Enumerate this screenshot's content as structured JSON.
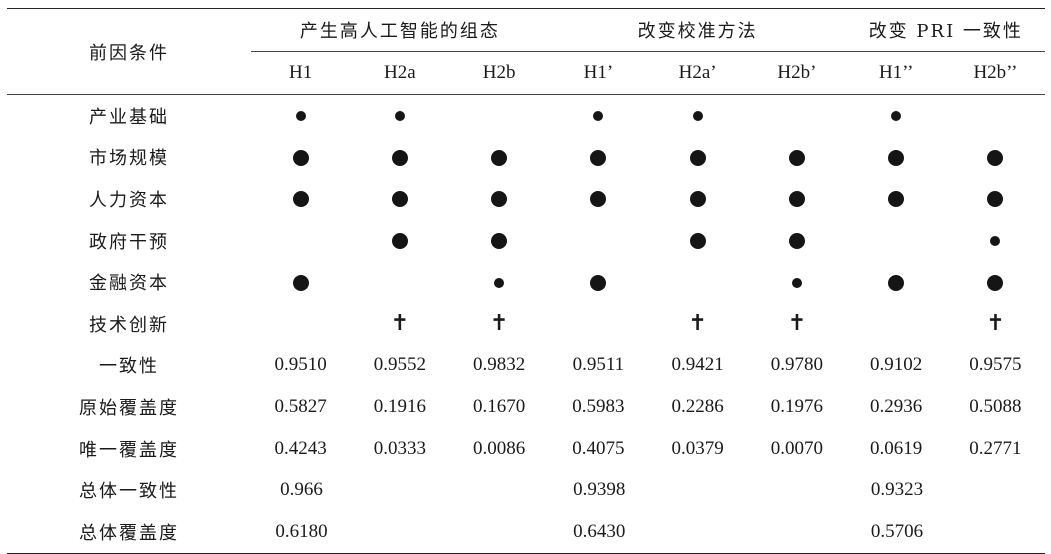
{
  "header": {
    "antecedent_label": "前因条件",
    "groups": [
      "产生高人工智能的组态",
      "改变校准方法",
      "改变 PRI 一致性"
    ],
    "configs": [
      "H1",
      "H2a",
      "H2b",
      "H1’",
      "H2a’",
      "H2b’",
      "H1’’",
      "H2b’’"
    ]
  },
  "legend_symbols": {
    "core_present": "●",
    "peripheral_present": "•",
    "absent": "✝"
  },
  "condition_rows": [
    {
      "label": "产业基础",
      "cells": [
        "small",
        "small",
        "",
        "small",
        "small",
        "",
        "small",
        ""
      ]
    },
    {
      "label": "市场规模",
      "cells": [
        "big",
        "big",
        "big",
        "big",
        "big",
        "big",
        "big",
        "big"
      ]
    },
    {
      "label": "人力资本",
      "cells": [
        "big",
        "big",
        "big",
        "big",
        "big",
        "big",
        "big",
        "big"
      ]
    },
    {
      "label": "政府干预",
      "cells": [
        "",
        "big",
        "big",
        "",
        "big",
        "big",
        "",
        "small"
      ]
    },
    {
      "label": "金融资本",
      "cells": [
        "big",
        "",
        "small",
        "big",
        "",
        "small",
        "big",
        "big"
      ]
    },
    {
      "label": "技术创新",
      "cells": [
        "",
        "dagger",
        "dagger",
        "",
        "dagger",
        "dagger",
        "",
        "dagger"
      ]
    }
  ],
  "metric_rows": [
    {
      "label": "一致性",
      "values": [
        "0.9510",
        "0.9552",
        "0.9832",
        "0.9511",
        "0.9421",
        "0.9780",
        "0.9102",
        "0.9575"
      ]
    },
    {
      "label": "原始覆盖度",
      "values": [
        "0.5827",
        "0.1916",
        "0.1670",
        "0.5983",
        "0.2286",
        "0.1976",
        "0.2936",
        "0.5088"
      ]
    },
    {
      "label": "唯一覆盖度",
      "values": [
        "0.4243",
        "0.0333",
        "0.0086",
        "0.4075",
        "0.0379",
        "0.0070",
        "0.0619",
        "0.2771"
      ]
    }
  ],
  "overall_rows": [
    {
      "label": "总体一致性",
      "values": [
        "0.966",
        "0.9398",
        "0.9323"
      ]
    },
    {
      "label": "总体覆盖度",
      "values": [
        "0.6180",
        "0.6430",
        "0.5706"
      ]
    }
  ]
}
